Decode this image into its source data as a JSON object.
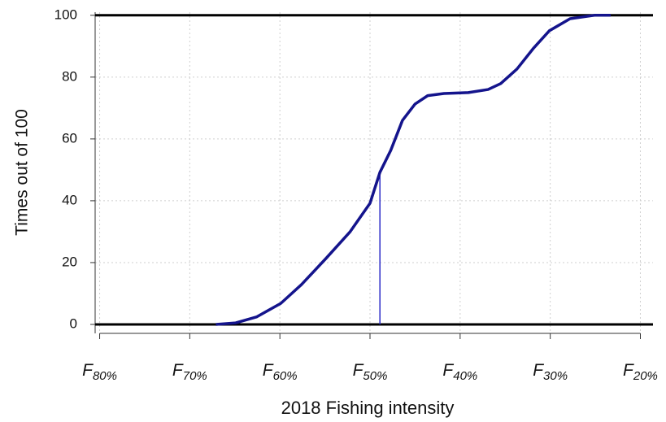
{
  "chart_data": {
    "type": "line",
    "xlabel": "2018 Fishing intensity",
    "ylabel": "Times out of 100",
    "xlim": [
      80.5,
      18.6
    ],
    "ylim": [
      -2.9,
      101
    ],
    "xticks": [
      {
        "value": 80,
        "label": "F",
        "subscript": "80%"
      },
      {
        "value": 70,
        "label": "F",
        "subscript": "70%"
      },
      {
        "value": 60,
        "label": "F",
        "subscript": "60%"
      },
      {
        "value": 50,
        "label": "F",
        "subscript": "50%"
      },
      {
        "value": 40,
        "label": "F",
        "subscript": "40%"
      },
      {
        "value": 30,
        "label": "F",
        "subscript": "30%"
      },
      {
        "value": 20,
        "label": "F",
        "subscript": "20%"
      }
    ],
    "yticks": [
      0,
      20,
      40,
      60,
      80,
      100
    ],
    "grid": true,
    "hlines": [
      0,
      100
    ],
    "reference_line": {
      "x": 48.9,
      "y": 49.2,
      "color": "#2b2bc8"
    },
    "series": [
      {
        "color": "#14148c",
        "x": [
          67.1,
          64.9,
          62.6,
          59.9,
          57.6,
          54.9,
          52.2,
          50.0,
          48.9,
          47.7,
          46.4,
          45.0,
          43.6,
          41.8,
          39.1,
          36.9,
          35.5,
          33.7,
          31.9,
          30.1,
          27.8,
          25.1,
          23.3
        ],
        "values": [
          0,
          0.5,
          2.4,
          6.8,
          12.9,
          21.3,
          30,
          39.2,
          49.2,
          56.3,
          66,
          71.3,
          74,
          74.7,
          75,
          76,
          77.9,
          82.6,
          89.2,
          95,
          98.9,
          100,
          100
        ]
      }
    ]
  }
}
